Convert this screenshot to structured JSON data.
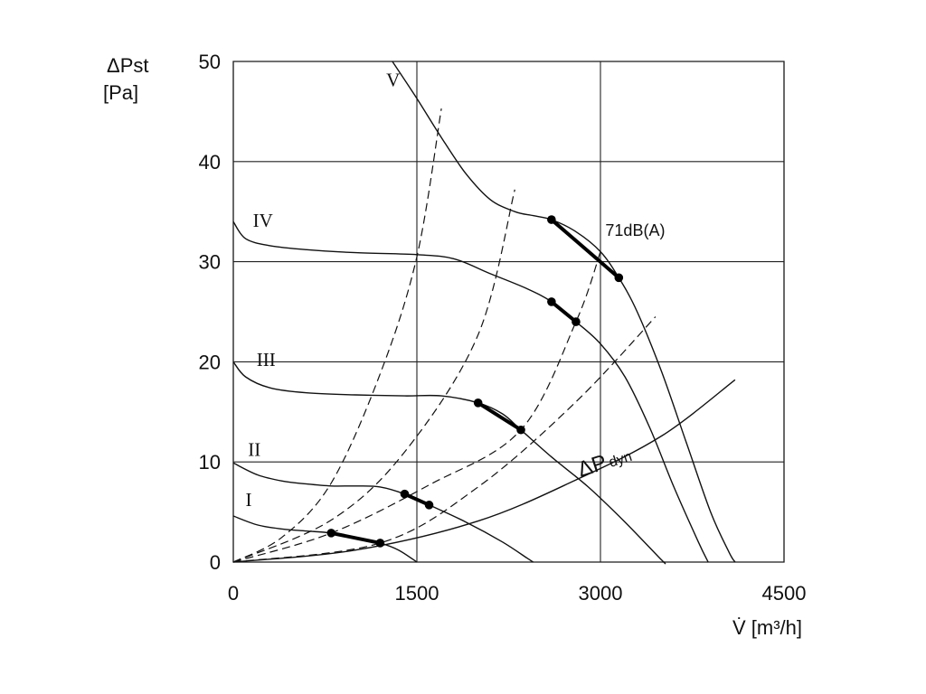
{
  "chart_data": {
    "type": "line",
    "title": "",
    "xlabel": "V̇ [m³/h]",
    "ylabel_line1": "ΔPst",
    "ylabel_line2": "[Pa]",
    "xlim": [
      0,
      4500
    ],
    "ylim": [
      0,
      50
    ],
    "x_ticks": [
      0,
      1500,
      3000,
      4500
    ],
    "x_tick_labels": [
      "0",
      "1500",
      "3000",
      "4500"
    ],
    "y_ticks": [
      0,
      10,
      20,
      30,
      40,
      50
    ],
    "y_tick_labels": [
      "0",
      "10",
      "20",
      "30",
      "40",
      "50"
    ],
    "grid": true,
    "series": [
      {
        "name": "I",
        "values": [
          [
            0,
            4.6
          ],
          [
            200,
            3.7
          ],
          [
            400,
            3.3
          ],
          [
            600,
            3.1
          ],
          [
            800,
            2.9
          ],
          [
            1000,
            2.4
          ],
          [
            1200,
            1.9
          ],
          [
            1350,
            1.2
          ],
          [
            1500,
            0
          ]
        ]
      },
      {
        "name": "II",
        "values": [
          [
            0,
            9.9
          ],
          [
            200,
            8.7
          ],
          [
            400,
            8.1
          ],
          [
            600,
            7.8
          ],
          [
            800,
            7.6
          ],
          [
            1000,
            7.6
          ],
          [
            1200,
            7.5
          ],
          [
            1400,
            6.8
          ],
          [
            1600,
            5.7
          ],
          [
            1900,
            4.0
          ],
          [
            2200,
            2.0
          ],
          [
            2400,
            0.4
          ],
          [
            2450,
            0
          ]
        ]
      },
      {
        "name": "III",
        "values": [
          [
            0,
            20.0
          ],
          [
            100,
            18.5
          ],
          [
            300,
            17.4
          ],
          [
            600,
            16.9
          ],
          [
            1000,
            16.7
          ],
          [
            1400,
            16.6
          ],
          [
            1700,
            16.6
          ],
          [
            2000,
            15.9
          ],
          [
            2200,
            14.8
          ],
          [
            2350,
            13.2
          ],
          [
            2600,
            10.5
          ],
          [
            2900,
            7.5
          ],
          [
            3200,
            4.0
          ],
          [
            3500,
            0.2
          ],
          [
            3520,
            0
          ]
        ]
      },
      {
        "name": "IV",
        "values": [
          [
            0,
            34.0
          ],
          [
            100,
            32.3
          ],
          [
            300,
            31.6
          ],
          [
            600,
            31.2
          ],
          [
            1000,
            30.9
          ],
          [
            1500,
            30.7
          ],
          [
            1800,
            30.3
          ],
          [
            2100,
            28.8
          ],
          [
            2400,
            27.3
          ],
          [
            2600,
            26.0
          ],
          [
            2800,
            24.0
          ],
          [
            3000,
            21.8
          ],
          [
            3200,
            18.5
          ],
          [
            3400,
            13.5
          ],
          [
            3600,
            7.5
          ],
          [
            3800,
            2.0
          ],
          [
            3880,
            0
          ]
        ]
      },
      {
        "name": "V",
        "values": [
          [
            1300,
            50
          ],
          [
            1500,
            46.3
          ],
          [
            1700,
            42.4
          ],
          [
            1900,
            38.8
          ],
          [
            2100,
            36.2
          ],
          [
            2300,
            35.0
          ],
          [
            2450,
            34.6
          ],
          [
            2600,
            34.2
          ],
          [
            2800,
            33.0
          ],
          [
            3000,
            31.0
          ],
          [
            3150,
            28.4
          ],
          [
            3300,
            25.0
          ],
          [
            3500,
            19.0
          ],
          [
            3700,
            12.0
          ],
          [
            3900,
            5.0
          ],
          [
            4050,
            1.0
          ],
          [
            4100,
            0
          ]
        ]
      }
    ],
    "system_curves": [
      {
        "values": [
          [
            0,
            0
          ],
          [
            400,
            2.5
          ],
          [
            800,
            7.9
          ],
          [
            1200,
            18.8
          ],
          [
            1500,
            30.5
          ],
          [
            1700,
            45.3
          ]
        ]
      },
      {
        "values": [
          [
            0,
            0
          ],
          [
            800,
            4.2
          ],
          [
            1400,
            11.0
          ],
          [
            2000,
            22.7
          ],
          [
            2300,
            37.2
          ]
        ]
      },
      {
        "values": [
          [
            0,
            0
          ],
          [
            800,
            2.9
          ],
          [
            1600,
            7.7
          ],
          [
            2350,
            13.2
          ],
          [
            2800,
            24.0
          ],
          [
            3000,
            31.0
          ]
        ]
      },
      {
        "values": [
          [
            0,
            0
          ],
          [
            1200,
            1.9
          ],
          [
            2000,
            7.5
          ],
          [
            2800,
            16.0
          ],
          [
            3450,
            24.5
          ]
        ]
      }
    ],
    "dynamic_pressure": {
      "label": "ΔP",
      "label_sub": "dyn",
      "values": [
        [
          0,
          0
        ],
        [
          1000,
          1.2
        ],
        [
          2000,
          4.1
        ],
        [
          2800,
          8.2
        ],
        [
          3500,
          12.6
        ],
        [
          4100,
          18.2
        ]
      ]
    },
    "operating_segments": [
      {
        "from": [
          800,
          2.9
        ],
        "to": [
          1200,
          1.9
        ]
      },
      {
        "from": [
          1400,
          6.8
        ],
        "to": [
          1600,
          5.7
        ]
      },
      {
        "from": [
          2000,
          15.9
        ],
        "to": [
          2350,
          13.2
        ]
      },
      {
        "from": [
          2600,
          26.0
        ],
        "to": [
          2800,
          24.0
        ]
      },
      {
        "from": [
          2600,
          34.2
        ],
        "to": [
          3150,
          28.4
        ]
      }
    ],
    "curve_labels": [
      {
        "text": "I",
        "x": 100,
        "y": 5.6
      },
      {
        "text": "II",
        "x": 120,
        "y": 10.6
      },
      {
        "text": "III",
        "x": 190,
        "y": 19.6
      },
      {
        "text": "IV",
        "x": 160,
        "y": 33.5
      },
      {
        "text": "V",
        "x": 1250,
        "y": 47.5
      }
    ],
    "annotations": [
      {
        "text": "71dB(A)",
        "x": 3040,
        "y": 32.6
      }
    ]
  }
}
